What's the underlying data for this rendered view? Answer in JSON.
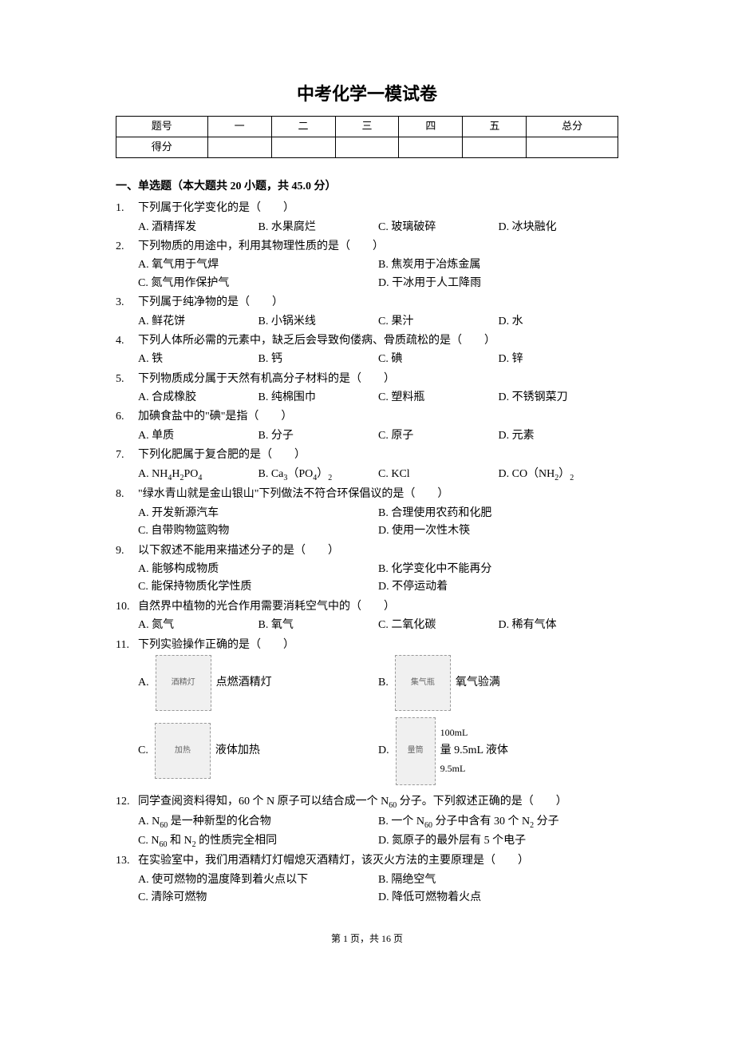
{
  "title": "中考化学一模试卷",
  "scoreTable": {
    "row1": [
      "题号",
      "一",
      "二",
      "三",
      "四",
      "五",
      "总分"
    ],
    "row2Label": "得分"
  },
  "sectionHeader": "一、单选题（本大题共 20 小题，共 45.0 分）",
  "questions": {
    "q1": {
      "num": "1.",
      "stem": "下列属于化学变化的是（　　）",
      "opts": [
        "A. 酒精挥发",
        "B. 水果腐烂",
        "C. 玻璃破碎",
        "D. 冰块融化"
      ]
    },
    "q2": {
      "num": "2.",
      "stem": "下列物质的用途中，利用其物理性质的是（　　）",
      "opts": [
        "A. 氧气用于气焊",
        "B. 焦炭用于冶炼金属",
        "C. 氮气用作保护气",
        "D. 干冰用于人工降雨"
      ]
    },
    "q3": {
      "num": "3.",
      "stem": "下列属于纯净物的是（　　）",
      "opts": [
        "A. 鲜花饼",
        "B. 小锅米线",
        "C. 果汁",
        "D. 水"
      ]
    },
    "q4": {
      "num": "4.",
      "stem": "下列人体所必需的元素中，缺乏后会导致佝偻病、骨质疏松的是（　　）",
      "opts": [
        "A. 铁",
        "B. 钙",
        "C. 碘",
        "D. 锌"
      ]
    },
    "q5": {
      "num": "5.",
      "stem": "下列物质成分属于天然有机高分子材料的是（　　）",
      "opts": [
        "A. 合成橡胶",
        "B. 纯棉围巾",
        "C. 塑料瓶",
        "D. 不锈钢菜刀"
      ]
    },
    "q6": {
      "num": "6.",
      "stem": "加碘食盐中的\"碘\"是指（　　）",
      "opts": [
        "A. 单质",
        "B. 分子",
        "C. 原子",
        "D. 元素"
      ]
    },
    "q7": {
      "num": "7.",
      "stem": "下列化肥属于复合肥的是（　　）",
      "optA_pre": "A. NH",
      "optA_sub1": "4",
      "optA_mid": "H",
      "optA_sub2": "2",
      "optA_post": "PO",
      "optA_sub3": "4",
      "optB_pre": "B. Ca",
      "optB_sub1": "3",
      "optB_mid": "（PO",
      "optB_sub2": "4",
      "optB_post": "）",
      "optB_sub3": "2",
      "optC": "C. KCl",
      "optD_pre": "D. CO（NH",
      "optD_sub1": "2",
      "optD_post": "）",
      "optD_sub2": "2"
    },
    "q8": {
      "num": "8.",
      "stem": "\"绿水青山就是金山银山\"下列做法不符合环保倡议的是（　　）",
      "opts": [
        "A. 开发新源汽车",
        "B. 合理使用农药和化肥",
        "C. 自带购物篮购物",
        "D. 使用一次性木筷"
      ]
    },
    "q9": {
      "num": "9.",
      "stem": "以下叙述不能用来描述分子的是（　　）",
      "opts": [
        "A. 能够构成物质",
        "B. 化学变化中不能再分",
        "C. 能保持物质化学性质",
        "D. 不停运动着"
      ]
    },
    "q10": {
      "num": "10.",
      "stem": "自然界中植物的光合作用需要消耗空气中的（　　）",
      "opts": [
        "A. 氮气",
        "B. 氧气",
        "C. 二氧化碳",
        "D. 稀有气体"
      ]
    },
    "q11": {
      "num": "11.",
      "stem": "下列实验操作正确的是（　　）",
      "imgLabels": {
        "a": "点燃酒精灯",
        "b": "氧气验满",
        "c": "液体加热",
        "d": "量 9.5mL 液体",
        "d_top": "100mL",
        "d_bot": "9.5mL"
      }
    },
    "q12": {
      "num": "12.",
      "stemPre": "同学查阅资料得知，60 个 N 原子可以结合成一个 N",
      "stemSub": "60",
      "stemPost": " 分子。下列叙述正确的是（　　）",
      "optA_pre": "A. N",
      "optA_sub": "60",
      "optA_post": " 是一种新型的化合物",
      "optB_pre": "B. 一个 N",
      "optB_sub1": "60",
      "optB_mid": " 分子中含有 30 个 N",
      "optB_sub2": "2",
      "optB_post": " 分子",
      "optC_pre": "C. N",
      "optC_sub1": "60",
      "optC_mid": " 和 N",
      "optC_sub2": "2",
      "optC_post": " 的性质完全相同",
      "optD": "D. 氮原子的最外层有 5 个电子"
    },
    "q13": {
      "num": "13.",
      "stem": "在实验室中，我们用酒精灯灯帽熄灭酒精灯，该灭火方法的主要原理是（　　）",
      "opts": [
        "A. 使可燃物的温度降到着火点以下",
        "B. 隔绝空气",
        "C. 清除可燃物",
        "D. 降低可燃物着火点"
      ]
    }
  },
  "footer": "第 1 页，共 16 页",
  "imgAlt": {
    "lamp": "酒精灯",
    "jar": "集气瓶",
    "heat": "加热",
    "cylinder": "量筒"
  }
}
